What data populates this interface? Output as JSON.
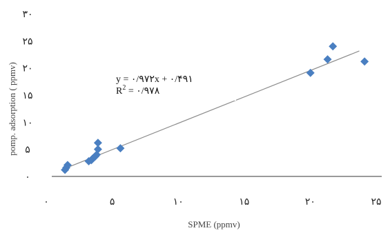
{
  "chart_data": {
    "type": "scatter",
    "xlabel": "SPME (ppmv)",
    "ylabel": "pomp. adsorption ( ppmv)",
    "xlim": [
      0,
      25
    ],
    "ylim": [
      0,
      30
    ],
    "x_ticks": [
      0,
      5,
      10,
      15,
      20,
      25
    ],
    "x_tick_labels": [
      "۰",
      "۵",
      "۱۰",
      "۱۵",
      "۲۰",
      "۲۵"
    ],
    "y_ticks": [
      0,
      5,
      10,
      15,
      20,
      25,
      30
    ],
    "y_tick_labels": [
      "۰",
      "۵",
      "۱۰",
      "۱۵",
      "۲۰",
      "۲۵",
      "۳۰"
    ],
    "grid": false,
    "marker_color": "#4a7fc1",
    "trendline_color": "#8c8c8c",
    "series": [
      {
        "points": [
          {
            "x": 1.0,
            "y": 1.2
          },
          {
            "x": 1.1,
            "y": 1.6
          },
          {
            "x": 1.2,
            "y": 2.1
          },
          {
            "x": 2.8,
            "y": 2.8
          },
          {
            "x": 3.0,
            "y": 3.0
          },
          {
            "x": 3.1,
            "y": 3.3
          },
          {
            "x": 3.2,
            "y": 3.5
          },
          {
            "x": 3.3,
            "y": 3.7
          },
          {
            "x": 3.4,
            "y": 4.0
          },
          {
            "x": 3.5,
            "y": 5.0
          },
          {
            "x": 3.5,
            "y": 6.2
          },
          {
            "x": 5.2,
            "y": 5.2
          },
          {
            "x": 19.6,
            "y": 19.1
          },
          {
            "x": 20.9,
            "y": 21.6
          },
          {
            "x": 21.3,
            "y": 24.0
          },
          {
            "x": 23.7,
            "y": 21.2
          }
        ]
      }
    ],
    "trendline": {
      "slope": 0.972,
      "intercept": 0.491,
      "x_range": [
        1.0,
        23.3
      ]
    },
    "equation_line1": "y = ۰/۹۷۲x + ۰/۴۹۱",
    "equation_line2_prefix": "R",
    "equation_line2_sup": "2",
    "equation_line2_rest": " = ۰/۹۷۸"
  }
}
